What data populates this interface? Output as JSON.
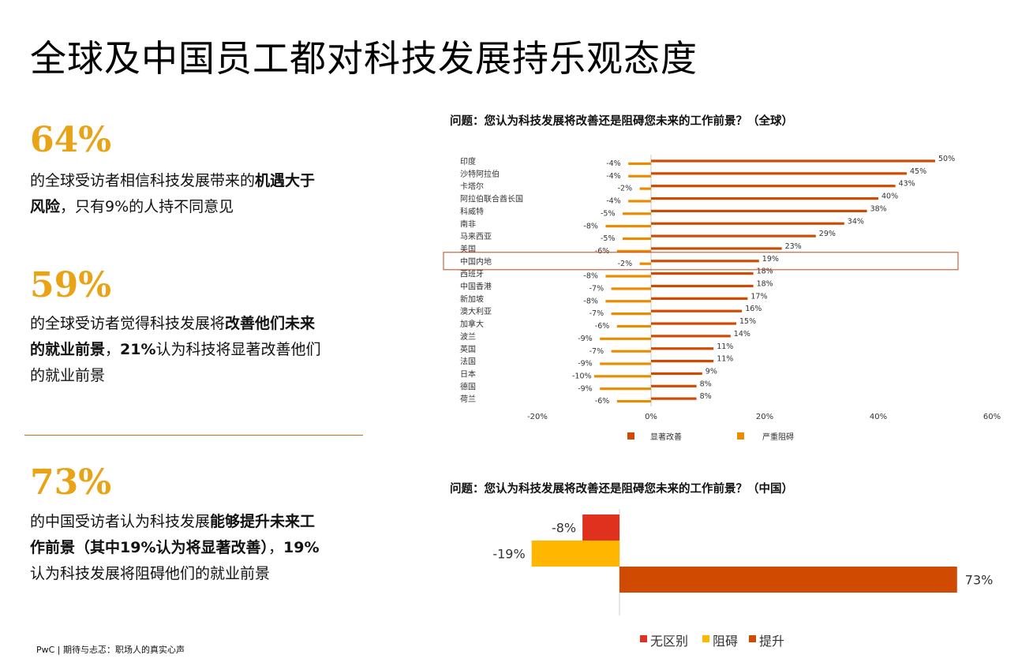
{
  "page": {
    "title": "全球及中国员工都对科技发展持乐观态度",
    "footer": "PwC | 期待与忐忑：职场人的真实心声"
  },
  "stats": [
    {
      "value": "64%",
      "parts": [
        {
          "text": "的全球受访者相信科技发展带来的",
          "bold": false
        },
        {
          "text": "机遇大于风险",
          "bold": true
        },
        {
          "text": "，只有9%的人持不同意见",
          "bold": false
        }
      ]
    },
    {
      "value": "59%",
      "parts": [
        {
          "text": "的全球受访者觉得科技发展将",
          "bold": false
        },
        {
          "text": "改善他们未来的就业前景",
          "bold": true
        },
        {
          "text": "，",
          "bold": false
        },
        {
          "text": "21%",
          "bold": true
        },
        {
          "text": "认为科技将显著改善他们的就业前景",
          "bold": false
        }
      ]
    },
    {
      "value": "73%",
      "parts": [
        {
          "text": "的中国受访者认为科技发展",
          "bold": false
        },
        {
          "text": "能够提升未来工作前景（其中19%认为将显著改善）",
          "bold": true
        },
        {
          "text": "，",
          "bold": false
        },
        {
          "text": "19%",
          "bold": true
        },
        {
          "text": "认为科技发展将阻碍他们的就业前景",
          "bold": false
        }
      ]
    }
  ],
  "colors": {
    "accent": "#E8A317",
    "improve": "#D04A02",
    "hinder": "#EB8C00",
    "no_difference": "#E0301E",
    "hinder_cn": "#FFB600",
    "highlight": "#C0461A"
  },
  "chart_data": [
    {
      "type": "bar",
      "orientation": "horizontal",
      "title": "问题：您认为科技发展将改善还是阻碍您未来的工作前景？（全球）",
      "categories": [
        "印度",
        "沙特阿拉伯",
        "卡塔尔",
        "阿拉伯联合酋长国",
        "科威特",
        "南非",
        "马来西亚",
        "美国",
        "中国内地",
        "西班牙",
        "中国香港",
        "新加坡",
        "澳大利亚",
        "加拿大",
        "波兰",
        "英国",
        "法国",
        "日本",
        "德国",
        "荷兰"
      ],
      "series": [
        {
          "name": "显著改善",
          "values": [
            50,
            45,
            43,
            40,
            38,
            34,
            29,
            23,
            19,
            18,
            18,
            17,
            16,
            15,
            14,
            11,
            11,
            9,
            8,
            8
          ],
          "labels": [
            "50%",
            "45%",
            "43%",
            "40%",
            "38%",
            "34%",
            "29%",
            "23%",
            "19%",
            "18%",
            "18%",
            "17%",
            "16%",
            "15%",
            "14%",
            "11%",
            "11%",
            "9%",
            "8%",
            "8%"
          ]
        },
        {
          "name": "严重阻碍",
          "values": [
            -4,
            -4,
            -2,
            -4,
            -5,
            -8,
            -5,
            -6,
            -2,
            -8,
            -7,
            -8,
            -7,
            -6,
            -9,
            -7,
            -9,
            -10,
            -9,
            -6
          ],
          "labels": [
            "-4%",
            "-4%",
            "-2%",
            "-4%",
            "-5%",
            "-8%",
            "-5%",
            "-6%",
            "-2%",
            "-8%",
            "-7%",
            "-8%",
            "-7%",
            "-6%",
            "-9%",
            "-7%",
            "-9%",
            "-10%",
            "-9%",
            "-6%"
          ]
        }
      ],
      "xlim": [
        -20,
        60
      ],
      "xticks": [
        -20,
        0,
        20,
        40,
        60
      ],
      "xtick_labels": [
        "-20%",
        "0%",
        "20%",
        "40%",
        "60%"
      ],
      "highlighted_category": "中国内地",
      "legend": [
        "显著改善",
        "严重阻碍"
      ],
      "legend_position": "bottom"
    },
    {
      "type": "bar",
      "orientation": "horizontal",
      "title": "问题：您认为科技发展将改善还是阻碍您未来的工作前景？（中国）",
      "series": [
        {
          "name": "无区别",
          "values": [
            -8
          ],
          "labels": [
            "-8%"
          ]
        },
        {
          "name": "阻碍",
          "values": [
            -19
          ],
          "labels": [
            "-19%"
          ]
        },
        {
          "name": "提升",
          "values": [
            73
          ],
          "labels": [
            "73%"
          ]
        }
      ],
      "legend": [
        "无区别",
        "阻碍",
        "提升"
      ],
      "legend_position": "bottom"
    }
  ]
}
